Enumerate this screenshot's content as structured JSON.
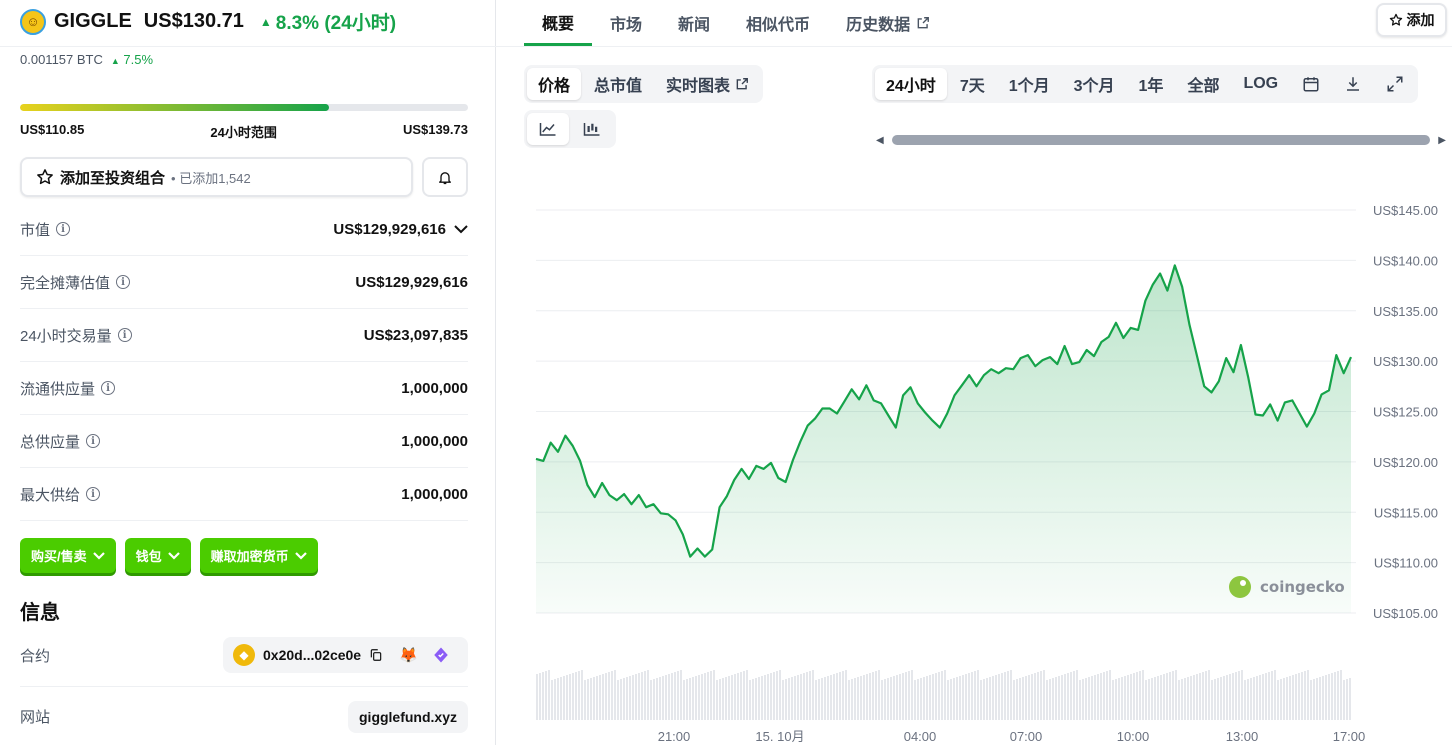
{
  "coin": {
    "symbol": "GIGGLE",
    "price": "US$130.71",
    "change_24h": "8.3% (24小时)",
    "btc_price": "0.001157 BTC",
    "btc_change": "7.5%",
    "logo_icon": "smiley-coin-icon"
  },
  "range": {
    "low": "US$110.85",
    "label": "24小时范围",
    "high": "US$139.73",
    "position": 0.69
  },
  "portfolio": {
    "label": "添加至投资组合",
    "added": "已添加1,542"
  },
  "stats": [
    {
      "label": "市值",
      "value": "US$129,929,616"
    },
    {
      "label": "完全摊薄估值",
      "value": "US$129,929,616"
    },
    {
      "label": "24小时交易量",
      "value": "US$23,097,835"
    },
    {
      "label": "流通供应量",
      "value": "1,000,000"
    },
    {
      "label": "总供应量",
      "value": "1,000,000"
    },
    {
      "label": "最大供给",
      "value": "1,000,000"
    }
  ],
  "actions": [
    "购买/售卖",
    "钱包",
    "赚取加密货币"
  ],
  "info": {
    "title": "信息",
    "contract_label": "合约",
    "contract": "0x20d...02ce0e",
    "website_label": "网站",
    "website": "gigglefund.xyz"
  },
  "nav": {
    "tabs": [
      "概要",
      "市场",
      "新闻",
      "相似代币",
      "历史数据"
    ],
    "active": 0,
    "add_label": "添加"
  },
  "chart_controls": {
    "type_tabs": [
      "价格",
      "总市值",
      "实时图表"
    ],
    "ranges": [
      "24小时",
      "7天",
      "1个月",
      "3个月",
      "1年",
      "全部",
      "LOG"
    ]
  },
  "watermark": "coingecko",
  "colors": {
    "accent": "#16a34a",
    "line": "#16a34a",
    "button": "#4bcc00"
  },
  "chart_data": {
    "type": "area",
    "title": "",
    "xlabel": "",
    "ylabel": "",
    "ylim": [
      105,
      145
    ],
    "y_ticks": [
      "US$145.00",
      "US$140.00",
      "US$135.00",
      "US$130.00",
      "US$125.00",
      "US$120.00",
      "US$115.00",
      "US$110.00",
      "US$105.00"
    ],
    "x_ticks": [
      "21:00",
      "15. 10月",
      "04:00",
      "07:00",
      "10:00",
      "13:00",
      "17:00"
    ],
    "series": [
      {
        "values": [
          120.3,
          120.1,
          121.9,
          121.0,
          122.6,
          121.6,
          120.1,
          117.7,
          116.5,
          117.9,
          116.7,
          116.2,
          116.8,
          115.8,
          116.7,
          115.5,
          115.8,
          114.9,
          114.8,
          114.2,
          112.8,
          110.6,
          111.4,
          110.6,
          111.3,
          115.5,
          116.6,
          118.2,
          119.3,
          118.3,
          119.6,
          119.3,
          119.9,
          118.4,
          118.0,
          120.2,
          122.0,
          123.6,
          124.3,
          125.3,
          125.3,
          124.8,
          126.0,
          127.2,
          126.2,
          127.6,
          126.1,
          125.8,
          124.6,
          123.4,
          126.6,
          127.4,
          125.8,
          124.9,
          124.1,
          123.4,
          124.8,
          126.6,
          127.6,
          128.6,
          127.5,
          128.6,
          129.2,
          128.8,
          129.3,
          129.2,
          130.3,
          130.6,
          129.5,
          130.1,
          130.4,
          129.7,
          131.5,
          129.7,
          129.9,
          131.1,
          130.5,
          131.9,
          132.4,
          133.8,
          132.3,
          133.3,
          133.1,
          136.0,
          137.6,
          138.7,
          137.0,
          139.5,
          137.4,
          133.6,
          130.6,
          127.5,
          126.9,
          128.0,
          130.3,
          128.9,
          131.6,
          128.4,
          124.7,
          124.6,
          125.7,
          124.1,
          125.9,
          126.1,
          124.8,
          123.5,
          124.8,
          126.7,
          127.1,
          130.6,
          128.8,
          130.4
        ]
      }
    ]
  }
}
